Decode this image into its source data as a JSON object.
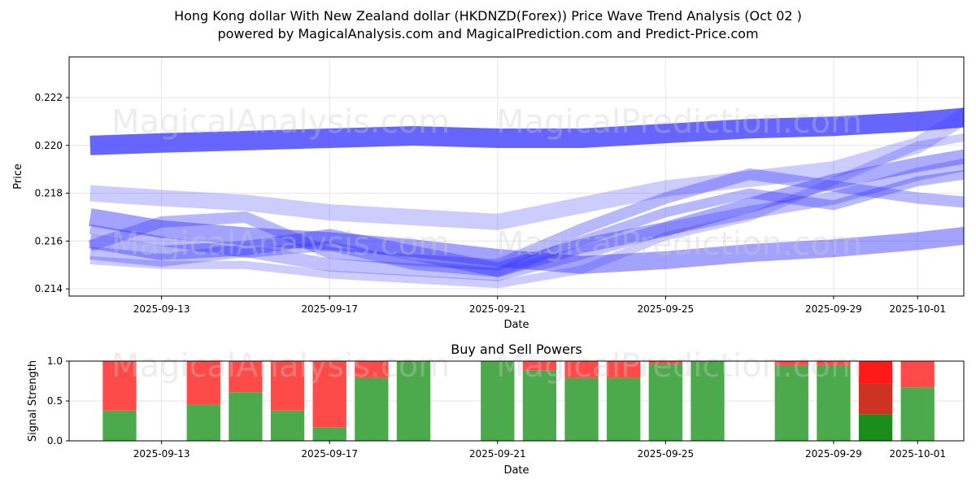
{
  "title_line1": "Hong Kong dollar With New Zealand dollar (HKDNZD(Forex)) Price Wave Trend Analysis (Oct 02 )",
  "title_line2": "powered by MagicalAnalysis.com and MagicalPrediction.com and Predict-Price.com",
  "watermarks": [
    "MagicalAnalysis.com",
    "MagicalPrediction.com"
  ],
  "colors": {
    "wave": "#3333ff",
    "buy": "#4caa4c",
    "sell": "#ff4a4a",
    "buy_strong": "#1a8c1a",
    "sell_strong": "#ff1a1a",
    "mix": "#cc3322"
  },
  "chart_data": [
    {
      "type": "line",
      "title": "",
      "xlabel": "Date",
      "ylabel": "Price",
      "xlim": [
        "2025-09-10",
        "2025-10-02"
      ],
      "ylim": [
        0.2137,
        0.2237
      ],
      "xticks": [
        "2025-09-13",
        "2025-09-17",
        "2025-09-21",
        "2025-09-25",
        "2025-09-29",
        "2025-10-01"
      ],
      "yticks": [
        "0.214",
        "0.216",
        "0.218",
        "0.220",
        "0.222"
      ],
      "grid": true,
      "x_day_offset_from_xlim_start": [
        1.3,
        3,
        5,
        7,
        9,
        11,
        13,
        15,
        17,
        19,
        21,
        23,
        25,
        27,
        29,
        31,
        32
      ],
      "series": [
        {
          "name": "upper channel band",
          "width": 24,
          "opacity": 0.75,
          "values": [
            0.22,
            0.2201,
            0.2202,
            0.2203,
            0.2204,
            0.2203,
            0.2203,
            0.2205,
            0.2207,
            0.2208,
            0.221,
            0.2213,
            0.2216,
            0.2219,
            0.2221,
            0.2222,
            0.2222
          ]
        },
        {
          "name": "lower channel band",
          "width": 22,
          "opacity": 0.45,
          "values": [
            0.217,
            0.2165,
            0.2162,
            0.216,
            0.2157,
            0.2153,
            0.215,
            0.2152,
            0.2155,
            0.2157,
            0.216,
            0.2164,
            0.217,
            0.218,
            0.219,
            0.2198,
            0.2204
          ]
        },
        {
          "name": "wave 1",
          "width": 18,
          "opacity": 0.4,
          "values": [
            0.216,
            0.2155,
            0.2157,
            0.2162,
            0.2155,
            0.2148,
            0.2158,
            0.2165,
            0.2175,
            0.2185,
            0.2192,
            0.2198,
            0.2205,
            0.2212,
            0.2218,
            0.222,
            0.2222
          ]
        },
        {
          "name": "wave 2",
          "width": 14,
          "opacity": 0.35,
          "values": [
            0.2158,
            0.2168,
            0.217,
            0.2155,
            0.2152,
            0.215,
            0.2165,
            0.2178,
            0.2188,
            0.2183,
            0.2178,
            0.2175,
            0.2212,
            0.2218,
            0.2222,
            0.2225,
            0.2222
          ]
        },
        {
          "name": "wave 3",
          "width": 12,
          "opacity": 0.35,
          "values": [
            0.2165,
            0.216,
            0.2155,
            0.2158,
            0.215,
            0.2147,
            0.216,
            0.2172,
            0.218,
            0.2175,
            0.2185,
            0.219,
            0.2222,
            0.2225,
            0.2228,
            0.2226,
            0.222
          ]
        },
        {
          "name": "wave 4",
          "width": 16,
          "opacity": 0.3,
          "values": [
            0.2155,
            0.2152,
            0.2156,
            0.215,
            0.2148,
            0.2146,
            0.2155,
            0.2165,
            0.2172,
            0.2178,
            0.2188,
            0.2195,
            0.2205,
            0.221,
            0.2215,
            0.222,
            0.2223
          ]
        },
        {
          "name": "wave 5",
          "width": 20,
          "opacity": 0.25,
          "values": [
            0.218,
            0.2178,
            0.2176,
            0.2172,
            0.217,
            0.2168,
            0.2175,
            0.2182,
            0.2186,
            0.219,
            0.22,
            0.2222,
            0.2226,
            0.2228,
            0.223,
            0.2228,
            0.2225
          ]
        },
        {
          "name": "wave 6",
          "width": 10,
          "opacity": 0.25,
          "values": [
            0.2152,
            0.215,
            0.215,
            0.2146,
            0.2144,
            0.2142,
            0.2148,
            0.2162,
            0.217,
            0.2185,
            0.22,
            0.2206,
            0.2212,
            0.222,
            0.2226,
            0.223,
            0.2232
          ]
        }
      ]
    },
    {
      "type": "bar",
      "stacked": true,
      "title": "Buy and Sell Powers",
      "xlabel": "Date",
      "ylabel": "Signal Strength",
      "ylim": [
        0,
        1
      ],
      "yticks": [
        "0.0",
        "0.5",
        "1.0"
      ],
      "xticks": [
        "2025-09-13",
        "2025-09-17",
        "2025-09-21",
        "2025-09-25",
        "2025-09-29",
        "2025-10-01"
      ],
      "categories": [
        "2025-09-12",
        "2025-09-14",
        "2025-09-15",
        "2025-09-16",
        "2025-09-17",
        "2025-09-18",
        "2025-09-19",
        "2025-09-21",
        "2025-09-22",
        "2025-09-23",
        "2025-09-24",
        "2025-09-25",
        "2025-09-26",
        "2025-09-28",
        "2025-09-29",
        "2025-09-30",
        "2025-10-01"
      ],
      "series": [
        {
          "name": "buy",
          "values": [
            0.38,
            0.45,
            0.61,
            0.38,
            0.17,
            0.79,
            1.0,
            1.0,
            0.88,
            0.79,
            0.79,
            0.96,
            1.0,
            0.95,
            0.95,
            0.33,
            0.67
          ]
        },
        {
          "name": "sell",
          "values": [
            0.62,
            0.55,
            0.39,
            0.62,
            0.83,
            0.21,
            0.0,
            0.0,
            0.12,
            0.21,
            0.21,
            0.04,
            0.0,
            0.05,
            0.05,
            0.67,
            0.33
          ]
        }
      ],
      "mixed_bar_date": "2025-09-30",
      "mixed_bar_mid_level": 0.72
    }
  ]
}
